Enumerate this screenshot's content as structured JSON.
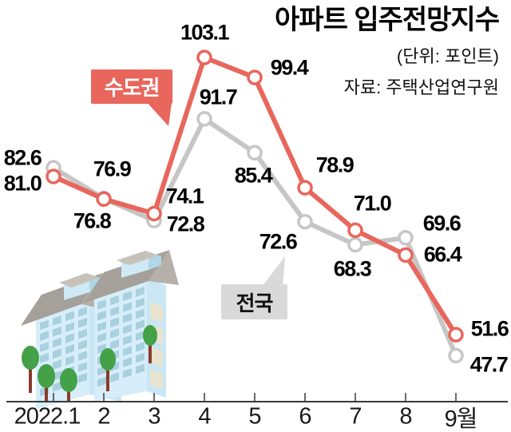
{
  "header": {
    "title": "아파트 입주전망지수",
    "unit": "(단위: 포인트)",
    "source": "자료: 주택산업연구원"
  },
  "chart_data": {
    "type": "line",
    "title": "아파트 입주전망지수",
    "unit_note": "(단위: 포인트)",
    "source_note": "자료: 주택산업연구원",
    "categories": [
      "2022.1",
      "2",
      "3",
      "4",
      "5",
      "6",
      "7",
      "8",
      "9월"
    ],
    "series": [
      {
        "name": "수도권",
        "color": "#e8665c",
        "values": [
          81.0,
          76.8,
          74.1,
          103.1,
          99.4,
          78.9,
          71.0,
          66.4,
          51.6
        ]
      },
      {
        "name": "전국",
        "color": "#c6c6c6",
        "values": [
          82.6,
          76.9,
          72.8,
          91.7,
          85.4,
          72.6,
          68.3,
          69.6,
          47.7
        ]
      }
    ],
    "ylim": [
      45,
      106
    ],
    "grid": false,
    "legend_position": "callout-bubbles-on-chart",
    "decoration": "isometric-apartment-buildings-with-trees"
  },
  "colors": {
    "capital_line": "#e8665c",
    "national_line": "#c6c6c6",
    "capital_callout_bg": "#e8665c",
    "national_callout_bg": "#d9d9d9",
    "axis": "#3a3a3a",
    "marker_fill": "#ffffff"
  }
}
